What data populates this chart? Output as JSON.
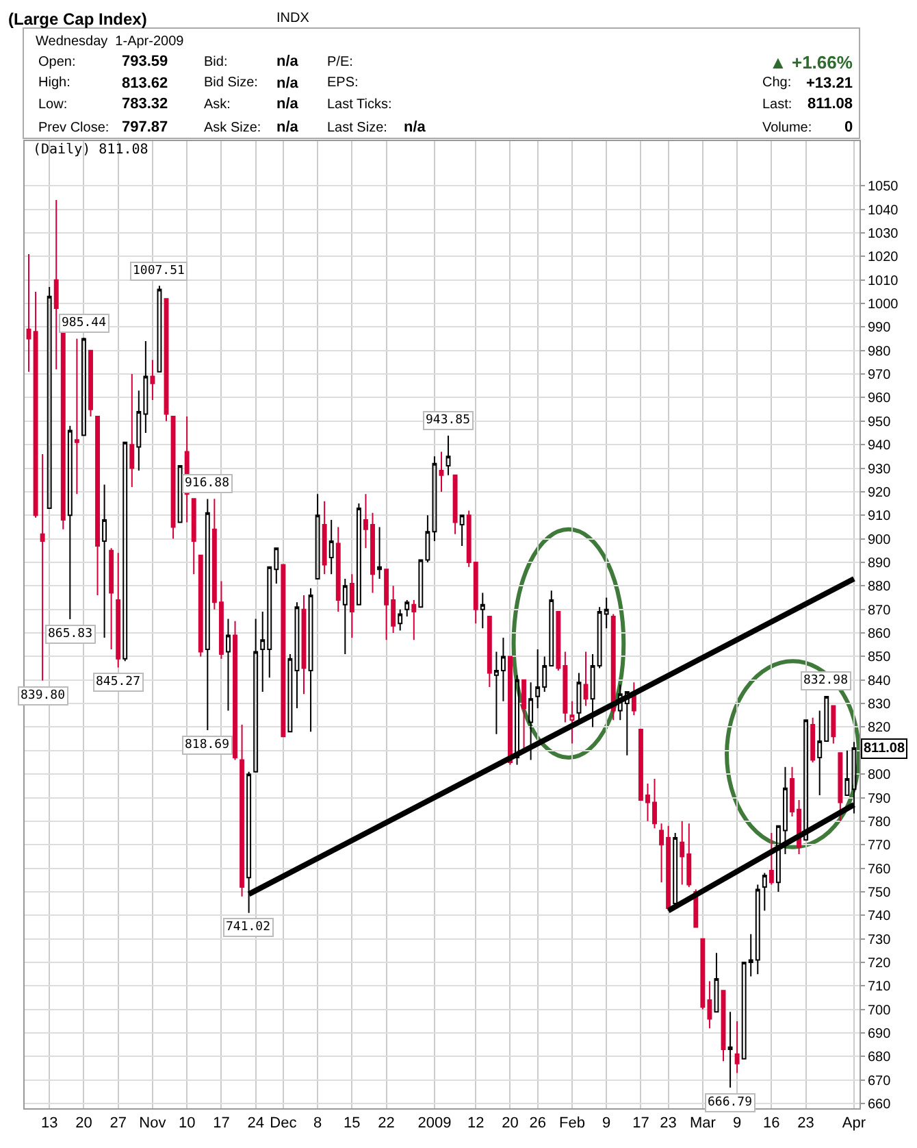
{
  "chart_data": {
    "type": "candlestick",
    "title": "(Large Cap Index)",
    "subtitle": "INDX",
    "categories": [
      null,
      null,
      null,
      "13",
      null,
      null,
      null,
      null,
      "20",
      null,
      null,
      null,
      null,
      "27",
      null,
      null,
      null,
      null,
      "Nov",
      null,
      null,
      null,
      null,
      "10",
      null,
      null,
      null,
      null,
      "17",
      null,
      null,
      null,
      null,
      "24",
      null,
      null,
      null,
      "Dec",
      null,
      null,
      null,
      null,
      "8",
      null,
      null,
      null,
      null,
      "15",
      null,
      null,
      null,
      null,
      "22",
      null,
      null,
      null,
      null,
      null,
      null,
      "2009",
      null,
      null,
      null,
      null,
      null,
      "12",
      null,
      null,
      null,
      null,
      "20",
      null,
      null,
      null,
      "26",
      null,
      null,
      null,
      null,
      "Feb",
      null,
      null,
      null,
      null,
      "9",
      null,
      null,
      null,
      null,
      "17",
      null,
      null,
      null,
      "23",
      null,
      null,
      null,
      null,
      "Mar",
      null,
      null,
      null,
      null,
      "9",
      null,
      null,
      null,
      null,
      "16",
      null,
      null,
      null,
      null,
      "23",
      null,
      null,
      null,
      null,
      null,
      null,
      "Apr"
    ],
    "ohlc": [
      [
        989,
        1021,
        971,
        985
      ],
      [
        988,
        1005,
        909,
        910
      ],
      [
        902,
        936,
        839.8,
        899
      ],
      [
        913,
        1007,
        913,
        1003
      ],
      [
        1010,
        1044,
        972,
        998
      ],
      [
        995,
        995,
        904,
        908
      ],
      [
        910,
        948,
        865.83,
        946
      ],
      [
        942,
        985,
        919,
        941
      ],
      [
        944,
        985.44,
        944,
        985
      ],
      [
        980,
        980,
        952,
        955
      ],
      [
        952,
        952,
        876,
        897
      ],
      [
        899,
        923,
        858,
        908
      ],
      [
        895,
        896,
        853,
        877
      ],
      [
        874,
        894,
        845.27,
        849
      ],
      [
        849,
        941,
        848,
        941
      ],
      [
        940,
        970,
        922,
        930
      ],
      [
        939,
        963,
        929,
        954
      ],
      [
        953,
        984,
        945,
        969
      ],
      [
        969,
        976,
        959,
        966
      ],
      [
        971,
        1007.51,
        971,
        1006
      ],
      [
        1002,
        1002,
        950,
        953
      ],
      [
        952,
        952,
        900,
        905
      ],
      [
        907,
        931,
        907,
        931
      ],
      [
        937,
        952,
        907,
        919
      ],
      [
        917,
        917,
        885,
        899
      ],
      [
        893,
        893,
        850,
        852
      ],
      [
        853,
        916.88,
        818.69,
        911
      ],
      [
        904,
        917,
        870,
        873
      ],
      [
        873,
        882,
        849,
        851
      ],
      [
        852,
        866,
        827,
        859
      ],
      [
        859,
        865,
        806,
        807
      ],
      [
        806,
        821,
        748,
        752
      ],
      [
        756,
        801,
        741.02,
        800
      ],
      [
        801,
        866,
        801,
        852
      ],
      [
        853,
        869,
        835,
        857
      ],
      [
        853,
        888,
        841,
        888
      ],
      [
        887,
        896,
        881,
        896
      ],
      [
        889,
        889,
        816,
        816
      ],
      [
        818,
        851,
        818,
        849
      ],
      [
        844,
        873,
        828,
        871
      ],
      [
        870,
        876,
        834,
        845
      ],
      [
        844,
        879,
        818,
        876
      ],
      [
        883,
        919,
        883,
        910
      ],
      [
        906,
        916,
        885,
        889
      ],
      [
        892,
        908,
        885,
        899
      ],
      [
        898,
        905,
        869,
        874
      ],
      [
        872,
        883,
        851,
        880
      ],
      [
        881,
        885,
        858,
        869
      ],
      [
        872,
        915,
        872,
        913
      ],
      [
        908,
        919,
        896,
        904
      ],
      [
        906,
        911,
        877,
        885
      ],
      [
        887,
        905,
        883,
        888
      ],
      [
        887,
        887,
        857,
        872
      ],
      [
        874,
        880,
        860,
        863
      ],
      [
        864,
        870,
        861,
        868
      ],
      [
        870,
        874,
        867,
        873
      ],
      [
        872,
        874,
        857,
        869
      ],
      [
        871,
        891,
        871,
        891
      ],
      [
        891,
        910,
        890,
        903
      ],
      [
        903,
        935,
        899,
        932
      ],
      [
        929,
        937,
        920,
        927
      ],
      [
        931,
        943.85,
        927,
        935
      ],
      [
        927,
        927,
        902,
        907
      ],
      [
        906,
        910,
        897,
        910
      ],
      [
        910,
        912,
        888,
        890
      ],
      [
        890,
        890,
        864,
        870
      ],
      [
        870,
        877,
        862,
        872
      ],
      [
        867,
        867,
        837,
        843
      ],
      [
        842,
        852,
        817,
        844
      ],
      [
        844,
        858,
        831,
        850
      ],
      [
        850,
        850,
        804,
        805
      ],
      [
        807,
        842,
        804,
        840
      ],
      [
        840,
        840,
        811,
        828
      ],
      [
        822,
        839,
        806,
        832
      ],
      [
        833,
        853,
        828,
        837
      ],
      [
        837,
        850,
        835,
        846
      ],
      [
        846,
        878,
        846,
        874
      ],
      [
        869,
        869,
        844,
        845
      ],
      [
        846,
        852,
        822,
        826
      ],
      [
        823,
        831,
        813,
        825
      ],
      [
        826,
        843,
        822,
        839
      ],
      [
        838,
        852,
        829,
        832
      ],
      [
        832,
        851,
        820,
        846
      ],
      [
        846,
        871,
        845,
        869
      ],
      [
        868,
        875,
        862,
        870
      ],
      [
        867,
        868,
        823,
        827
      ],
      [
        827,
        838,
        823,
        834
      ],
      [
        830,
        835,
        808,
        835
      ],
      [
        834,
        839,
        825,
        827
      ],
      [
        819,
        819,
        789,
        789
      ],
      [
        791,
        796,
        780,
        788
      ],
      [
        788,
        798,
        777,
        779
      ],
      [
        776,
        779,
        754,
        770
      ],
      [
        773,
        778,
        742,
        743
      ],
      [
        745,
        775,
        745,
        773
      ],
      [
        771,
        780,
        753,
        765
      ],
      [
        766,
        779,
        752,
        753
      ],
      [
        750,
        751,
        735,
        735
      ],
      [
        730,
        730,
        700,
        701
      ],
      [
        704,
        712,
        692,
        696
      ],
      [
        699,
        724,
        699,
        713
      ],
      [
        708,
        708,
        678,
        683
      ],
      [
        684,
        699,
        666.79,
        683
      ],
      [
        681,
        695,
        673,
        677
      ],
      [
        679,
        720,
        679,
        720
      ],
      [
        720,
        732,
        714,
        721
      ],
      [
        721,
        753,
        715,
        751
      ],
      [
        752,
        758,
        742,
        757
      ],
      [
        759,
        775,
        753,
        754
      ],
      [
        754,
        778,
        750,
        778
      ],
      [
        776,
        803,
        766,
        794
      ],
      [
        798,
        803,
        782,
        784
      ],
      [
        785,
        789,
        766,
        769
      ],
      [
        772,
        823,
        772,
        823
      ],
      [
        821,
        824,
        805,
        806
      ],
      [
        807,
        827,
        791,
        814
      ],
      [
        814,
        832.98,
        814,
        832.9
      ],
      [
        829,
        829,
        813,
        816
      ],
      [
        809,
        809,
        780,
        788
      ],
      [
        791,
        810,
        791,
        798
      ],
      [
        793.59,
        813.62,
        783.32,
        811.08
      ]
    ],
    "colors": [
      "#d3003a",
      "#d3003a",
      "#d3003a",
      "#000000",
      "#d3003a",
      "#d3003a",
      "#000000",
      "#d3003a",
      "#000000",
      "#d3003a",
      "#d3003a",
      "#000000",
      "#d3003a",
      "#d3003a",
      "#000000",
      "#d3003a",
      "#000000",
      "#000000",
      "#d3003a",
      "#000000",
      "#d3003a",
      "#d3003a",
      "#000000",
      "#d3003a",
      "#d3003a",
      "#d3003a",
      "#000000",
      "#d3003a",
      "#d3003a",
      "#000000",
      "#d3003a",
      "#d3003a",
      "#000000",
      "#000000",
      "#000000",
      "#000000",
      "#000000",
      "#d3003a",
      "#000000",
      "#000000",
      "#d3003a",
      "#000000",
      "#000000",
      "#d3003a",
      "#000000",
      "#d3003a",
      "#000000",
      "#d3003a",
      "#000000",
      "#d3003a",
      "#d3003a",
      "#000000",
      "#d3003a",
      "#d3003a",
      "#000000",
      "#000000",
      "#d3003a",
      "#000000",
      "#000000",
      "#000000",
      "#d3003a",
      "#000000",
      "#d3003a",
      "#000000",
      "#d3003a",
      "#d3003a",
      "#000000",
      "#d3003a",
      "#000000",
      "#000000",
      "#d3003a",
      "#000000",
      "#d3003a",
      "#000000",
      "#000000",
      "#000000",
      "#000000",
      "#d3003a",
      "#d3003a",
      "#d3003a",
      "#000000",
      "#d3003a",
      "#000000",
      "#000000",
      "#000000",
      "#d3003a",
      "#000000",
      "#000000",
      "#d3003a",
      "#d3003a",
      "#d3003a",
      "#d3003a",
      "#d3003a",
      "#d3003a",
      "#000000",
      "#d3003a",
      "#d3003a",
      "#d3003a",
      "#d3003a",
      "#d3003a",
      "#000000",
      "#d3003a",
      "#000000",
      "#d3003a",
      "#000000",
      "#000000",
      "#000000",
      "#000000",
      "#d3003a",
      "#000000",
      "#000000",
      "#d3003a",
      "#d3003a",
      "#000000",
      "#d3003a",
      "#000000",
      "#000000",
      "#d3003a",
      "#d3003a",
      "#000000",
      "#000000"
    ],
    "series": [
      {
        "type": "line",
        "color": "#000000",
        "values": [
          null,
          null,
          null,
          null,
          null,
          null,
          null,
          null,
          null,
          null,
          null,
          null,
          null,
          null,
          null,
          null,
          null,
          null,
          null,
          null,
          null,
          null,
          null,
          null,
          null,
          null,
          null,
          null,
          null,
          null,
          null,
          null,
          749,
          null,
          null,
          null,
          null,
          null,
          null,
          null,
          null,
          null,
          null,
          null,
          null,
          null,
          null,
          null,
          null,
          null,
          null,
          null,
          null,
          null,
          null,
          null,
          null,
          null,
          null,
          null,
          null,
          null,
          null,
          null,
          null,
          null,
          null,
          null,
          null,
          null,
          null,
          null,
          null,
          null,
          null,
          null,
          null,
          null,
          null,
          null,
          null,
          null,
          null,
          null,
          null,
          null,
          null,
          null,
          null,
          null,
          null,
          null,
          null,
          null,
          null,
          null,
          null,
          null,
          null,
          null,
          null,
          null,
          null,
          null,
          null,
          null,
          null,
          null,
          null,
          null,
          null,
          null,
          null,
          null,
          null,
          null,
          null,
          null,
          null,
          null,
          883
        ]
      },
      {
        "type": "line",
        "color": "#000000",
        "values": [
          null,
          null,
          null,
          null,
          null,
          null,
          null,
          null,
          null,
          null,
          null,
          null,
          null,
          null,
          null,
          null,
          null,
          null,
          null,
          null,
          null,
          null,
          null,
          null,
          null,
          null,
          null,
          null,
          null,
          null,
          null,
          null,
          null,
          null,
          null,
          null,
          null,
          null,
          null,
          null,
          null,
          null,
          null,
          null,
          null,
          null,
          null,
          null,
          null,
          null,
          null,
          null,
          null,
          null,
          null,
          null,
          null,
          null,
          null,
          null,
          null,
          null,
          null,
          null,
          null,
          null,
          null,
          null,
          null,
          null,
          null,
          null,
          null,
          null,
          null,
          null,
          null,
          null,
          null,
          null,
          null,
          null,
          null,
          null,
          null,
          null,
          null,
          null,
          null,
          null,
          null,
          null,
          null,
          742,
          null,
          null,
          null,
          null,
          null,
          null,
          null,
          null,
          null,
          null,
          null,
          null,
          null,
          null,
          null,
          null,
          null,
          null,
          null,
          null,
          null,
          null,
          null,
          null,
          null,
          null,
          787
        ]
      }
    ],
    "ylim": [
      658,
      1069
    ],
    "yticks": [
      660,
      670,
      680,
      690,
      700,
      710,
      720,
      730,
      740,
      750,
      760,
      770,
      780,
      790,
      800,
      {
        "value": 810,
        "label": null
      },
      820,
      830,
      840,
      850,
      860,
      870,
      880,
      890,
      900,
      910,
      920,
      930,
      940,
      950,
      960,
      970,
      980,
      990,
      1000,
      1010,
      1020,
      1030,
      1040,
      1050
    ],
    "grid": true,
    "annotations": [
      "Wednesday  1-Apr-2009",
      "Open:",
      "793.59",
      "Bid:",
      "n/a",
      "P/E:",
      "High:",
      "813.62",
      "Bid Size:",
      "n/a",
      "EPS:",
      "Low:",
      "783.32",
      "Ask:",
      "n/a",
      "Last Ticks:",
      "Prev Close:",
      "797.87",
      "Ask Size:",
      "n/a",
      "Last Size:",
      "n/a",
      "▲ +1.66%",
      "Chg:",
      "+13.21",
      "Last:",
      "811.08",
      "Volume:",
      "0",
      "(Daily) 811.08",
      {
        "text": "839.80",
        "y": 839.8
      },
      {
        "text": "865.83",
        "y": 865.83
      },
      {
        "text": "985.44",
        "y": 985.44
      },
      {
        "text": "845.27",
        "y": 845.27
      },
      {
        "text": "1007.51",
        "y": 1007.51
      },
      {
        "text": "916.88",
        "y": 916.88
      },
      {
        "text": "818.69",
        "y": 818.69
      },
      {
        "text": "741.02",
        "y": 741.02
      },
      {
        "text": "943.85",
        "y": 943.85
      },
      {
        "text": "832.98",
        "y": 832.98
      },
      {
        "text": "666.79",
        "y": 666.79
      },
      {
        "text": "811.08",
        "y": 811.08
      }
    ]
  }
}
